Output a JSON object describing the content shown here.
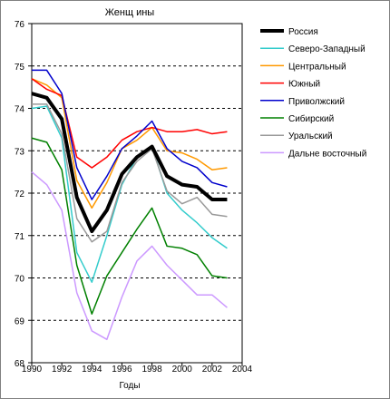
{
  "chart_data": {
    "type": "line",
    "title": "Женщ ины",
    "xlabel": "Годы",
    "ylabel": "",
    "xlim": [
      1990,
      2004
    ],
    "ylim": [
      68,
      76
    ],
    "x_ticks": [
      1990,
      1992,
      1994,
      1996,
      1998,
      2000,
      2002,
      2004
    ],
    "y_ticks": [
      68,
      69,
      70,
      71,
      72,
      73,
      74,
      75,
      76
    ],
    "grid": "horizontal dashed",
    "legend_position": "right",
    "x": [
      1990,
      1991,
      1992,
      1993,
      1994,
      1995,
      1996,
      1997,
      1998,
      1999,
      2000,
      2001,
      2002,
      2003
    ],
    "series": [
      {
        "name": "Россия",
        "color": "#000000",
        "width": 4,
        "values": [
          74.35,
          74.25,
          73.75,
          71.9,
          71.1,
          71.6,
          72.45,
          72.85,
          73.1,
          72.4,
          72.2,
          72.15,
          71.85,
          71.85
        ]
      },
      {
        "name": "Северо-Западный",
        "color": "#33cccc",
        "width": 1.5,
        "values": [
          74.0,
          74.05,
          73.3,
          70.6,
          69.9,
          71.0,
          72.2,
          72.85,
          73.1,
          72.0,
          71.6,
          71.3,
          70.95,
          70.7
        ]
      },
      {
        "name": "Центральный",
        "color": "#ff9900",
        "width": 1.5,
        "values": [
          74.7,
          74.55,
          74.25,
          72.3,
          71.65,
          72.25,
          73.05,
          73.25,
          73.55,
          73.0,
          72.95,
          72.8,
          72.55,
          72.6
        ]
      },
      {
        "name": "Южный",
        "color": "#ff0000",
        "width": 1.5,
        "values": [
          74.7,
          74.45,
          74.3,
          72.85,
          72.6,
          72.85,
          73.25,
          73.45,
          73.55,
          73.45,
          73.45,
          73.5,
          73.4,
          73.45
        ]
      },
      {
        "name": "Приволжский",
        "color": "#0000cc",
        "width": 1.5,
        "values": [
          74.9,
          74.9,
          74.35,
          72.6,
          71.85,
          72.4,
          73.05,
          73.35,
          73.7,
          73.05,
          72.75,
          72.6,
          72.25,
          72.15
        ]
      },
      {
        "name": "Сибирский",
        "color": "#008000",
        "width": 1.5,
        "values": [
          73.3,
          73.2,
          72.55,
          70.3,
          69.15,
          70.05,
          70.6,
          71.15,
          71.65,
          70.75,
          70.7,
          70.55,
          70.05,
          70.0
        ]
      },
      {
        "name": "Уральский",
        "color": "#999999",
        "width": 1.5,
        "values": [
          74.1,
          74.1,
          73.4,
          71.4,
          70.85,
          71.1,
          72.25,
          72.75,
          73.05,
          72.05,
          71.75,
          71.9,
          71.5,
          71.45
        ]
      },
      {
        "name": "Дальне восточный",
        "color": "#cc99ff",
        "width": 1.5,
        "values": [
          72.5,
          72.2,
          71.6,
          69.65,
          68.75,
          68.55,
          69.55,
          70.4,
          70.75,
          70.3,
          69.95,
          69.6,
          69.6,
          69.3
        ]
      }
    ]
  }
}
